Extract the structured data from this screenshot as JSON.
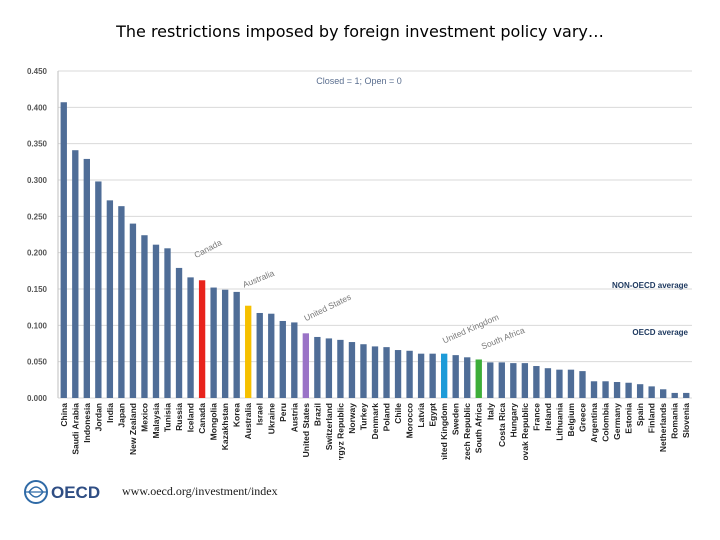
{
  "slide": {
    "title": "The restrictions imposed by foreign investment policy vary…",
    "logo_text": "OECD",
    "url": "www.oecd.org/investment/index"
  },
  "colors": {
    "default_bar": "#4f6d97",
    "canada": "#e8231c",
    "australia": "#f6c000",
    "united_states": "#9a73c7",
    "united_kingdom": "#1d9bd8",
    "south_africa": "#3dae39",
    "axis_text": "#555555",
    "grid": "#d9d9d9",
    "annotation_text": "#7a7a7a"
  },
  "chart_data": {
    "type": "bar",
    "title": "",
    "subtitle": "Closed = 1; Open = 0",
    "xlabel": "",
    "ylabel": "",
    "ylim": [
      0,
      0.45
    ],
    "yticks": [
      "0.000",
      "0.050",
      "0.100",
      "0.150",
      "0.200",
      "0.250",
      "0.300",
      "0.350",
      "0.400",
      "0.450"
    ],
    "grid": true,
    "categories": [
      "China",
      "Saudi Arabia",
      "Indonesia",
      "Jordan",
      "India",
      "Japan",
      "New Zealand",
      "Mexico",
      "Malaysia",
      "Tunisia",
      "Russia",
      "Iceland",
      "Canada",
      "Mongolia",
      "Kazakhstan",
      "Korea",
      "Australia",
      "Israel",
      "Ukraine",
      "Peru",
      "Austria",
      "United States",
      "Brazil",
      "Switzerland",
      "Kyrgyz Republic",
      "Norway",
      "Turkey",
      "Denmark",
      "Poland",
      "Chile",
      "Morocco",
      "Latvia",
      "Egypt",
      "United Kingdom",
      "Sweden",
      "Czech Republic",
      "South Africa",
      "Italy",
      "Costa Rica",
      "Hungary",
      "Slovak Republic",
      "France",
      "Ireland",
      "Lithuania",
      "Belgium",
      "Greece",
      "Argentina",
      "Colombia",
      "Germany",
      "Estonia",
      "Spain",
      "Finland",
      "Netherlands",
      "Romania",
      "Slovenia"
    ],
    "values": [
      0.407,
      0.341,
      0.329,
      0.298,
      0.272,
      0.264,
      0.24,
      0.224,
      0.211,
      0.206,
      0.179,
      0.166,
      0.162,
      0.152,
      0.149,
      0.146,
      0.127,
      0.117,
      0.116,
      0.106,
      0.104,
      0.089,
      0.084,
      0.082,
      0.08,
      0.077,
      0.074,
      0.071,
      0.07,
      0.066,
      0.065,
      0.061,
      0.061,
      0.061,
      0.059,
      0.056,
      0.053,
      0.049,
      0.049,
      0.048,
      0.048,
      0.044,
      0.041,
      0.039,
      0.039,
      0.037,
      0.023,
      0.023,
      0.022,
      0.021,
      0.019,
      0.016,
      0.012,
      0.007,
      0.007
    ],
    "highlights": {
      "Canada": "canada",
      "Australia": "australia",
      "United States": "united_states",
      "United Kingdom": "united_kingdom",
      "South Africa": "south_africa"
    },
    "annotations": [
      {
        "text": "NON-OECD average",
        "value": 0.15
      },
      {
        "text": "OECD average",
        "value": 0.093
      }
    ],
    "callouts": [
      {
        "text": "Canada",
        "category": "Canada"
      },
      {
        "text": "Australia",
        "category": "Australia"
      },
      {
        "text": "United States",
        "category": "United States"
      },
      {
        "text": "United Kingdom",
        "category": "United Kingdom"
      },
      {
        "text": "South Africa",
        "category": "South Africa"
      }
    ]
  }
}
